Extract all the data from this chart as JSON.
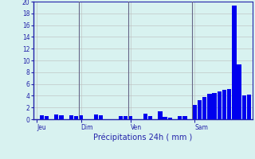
{
  "title": "",
  "xlabel": "Précipitations 24h ( mm )",
  "ylabel": "",
  "ylim": [
    0,
    20
  ],
  "yticks": [
    0,
    2,
    4,
    6,
    8,
    10,
    12,
    14,
    16,
    18,
    20
  ],
  "background_color": "#d8f2f0",
  "bar_color": "#0000ee",
  "grid_color": "#bbbbbb",
  "day_labels": [
    "Jeu",
    "Dim",
    "Ven",
    "Sam"
  ],
  "values": [
    0.0,
    0.7,
    0.6,
    0.0,
    0.8,
    0.7,
    0.0,
    0.7,
    0.6,
    0.7,
    0.0,
    0.0,
    0.8,
    0.7,
    0.0,
    0.0,
    0.0,
    0.5,
    0.5,
    0.6,
    0.0,
    0.0,
    1.0,
    0.5,
    0.0,
    1.4,
    0.4,
    0.3,
    0.0,
    0.5,
    0.5,
    0.0,
    2.5,
    3.2,
    3.8,
    4.3,
    4.5,
    4.7,
    5.0,
    5.2,
    19.3,
    9.3,
    4.0,
    4.2
  ],
  "vline_color": "#666688",
  "xlabel_color": "#2222aa",
  "tick_color": "#2222aa",
  "axis_color": "#2222aa",
  "num_bars_jeu": 9,
  "num_bars_dim": 10,
  "num_bars_ven": 13,
  "num_bars_sam": 10,
  "jeu_label_bar": 1,
  "dim_label_bar": 10,
  "ven_label_bar": 21,
  "sam_label_bar": 33
}
